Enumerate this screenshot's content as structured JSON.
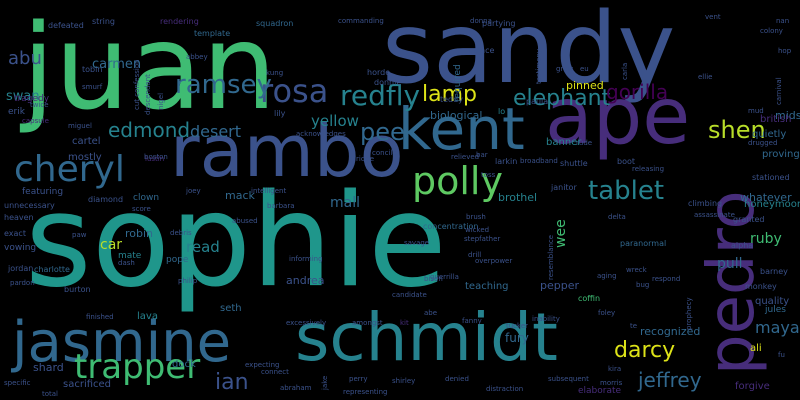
{
  "palette": {
    "background": "#000000",
    "green": "#3fbc73",
    "lime": "#b8de29",
    "yellow": "#dde318",
    "teal": "#1f968b",
    "cyan": "#26828e",
    "blue": "#31688e",
    "indigo": "#3b528b",
    "violet": "#472d7b",
    "purple": "#440154",
    "lightgreen": "#5ec962",
    "mint": "#20a386"
  },
  "words": [
    {
      "text": "sophie",
      "color": "#1f968b"
    },
    {
      "text": "juan",
      "color": "#3fbc73"
    },
    {
      "text": "sandy",
      "color": "#3b528b"
    },
    {
      "text": "ape",
      "color": "#472d7b"
    },
    {
      "text": "rambo",
      "color": "#3b528b"
    },
    {
      "text": "schmidt",
      "color": "#26828e"
    },
    {
      "text": "jasmine",
      "color": "#31688e"
    },
    {
      "text": "pedro",
      "color": "#472d7b"
    },
    {
      "text": "kent",
      "color": "#31688e"
    },
    {
      "text": "trapper",
      "color": "#3fbc73"
    },
    {
      "text": "cheryl",
      "color": "#31688e"
    },
    {
      "text": "polly",
      "color": "#5ec962"
    },
    {
      "text": "rosa",
      "color": "#3b528b"
    },
    {
      "text": "redfly",
      "color": "#26828e"
    },
    {
      "text": "ramsey",
      "color": "#31688e"
    },
    {
      "text": "lamp",
      "color": "#dde318"
    },
    {
      "text": "elephant",
      "color": "#26828e"
    },
    {
      "text": "gorilla",
      "color": "#440154"
    },
    {
      "text": "shen",
      "color": "#b8de29"
    },
    {
      "text": "yellow",
      "color": "#26828e"
    },
    {
      "text": "pee",
      "color": "#31688e"
    },
    {
      "text": "tablet",
      "color": "#26828e"
    },
    {
      "text": "edmond",
      "color": "#26828e"
    },
    {
      "text": "desert",
      "color": "#31688e"
    },
    {
      "text": "darcy",
      "color": "#dde318"
    },
    {
      "text": "jeffrey",
      "color": "#31688e"
    },
    {
      "text": "ian",
      "color": "#3b528b"
    },
    {
      "text": "maya",
      "color": "#31688e"
    },
    {
      "text": "abu",
      "color": "#3b528b"
    },
    {
      "text": "carmen",
      "color": "#31688e"
    },
    {
      "text": "swan",
      "color": "#26828e"
    },
    {
      "text": "mall",
      "color": "#31688e"
    },
    {
      "text": "read",
      "color": "#26828e"
    },
    {
      "text": "car",
      "color": "#b8de29"
    },
    {
      "text": "wee",
      "color": "#3fbc73"
    },
    {
      "text": "pull",
      "color": "#31688e"
    },
    {
      "text": "ruby",
      "color": "#3fbc73"
    },
    {
      "text": "mack",
      "color": "#31688e"
    },
    {
      "text": "whatever",
      "color": "#31688e"
    },
    {
      "text": "brothel",
      "color": "#26828e"
    },
    {
      "text": "biological",
      "color": "#31688e"
    },
    {
      "text": "banner",
      "color": "#26828e"
    },
    {
      "text": "quietly",
      "color": "#31688e"
    },
    {
      "text": "midst",
      "color": "#31688e"
    },
    {
      "text": "proving",
      "color": "#31688e"
    },
    {
      "text": "british",
      "color": "#472d7b"
    },
    {
      "text": "honeymoon",
      "color": "#26828e"
    },
    {
      "text": "pinned",
      "color": "#dde318"
    },
    {
      "text": "fury",
      "color": "#31688e"
    },
    {
      "text": "recognized",
      "color": "#31688e"
    },
    {
      "text": "andrea",
      "color": "#3b528b"
    },
    {
      "text": "pepper",
      "color": "#3b528b"
    },
    {
      "text": "teaching",
      "color": "#31688e"
    },
    {
      "text": "robin",
      "color": "#31688e"
    },
    {
      "text": "mate",
      "color": "#26828e"
    },
    {
      "text": "pope",
      "color": "#31688e"
    },
    {
      "text": "lava",
      "color": "#26828e"
    },
    {
      "text": "seth",
      "color": "#31688e"
    },
    {
      "text": "dock",
      "color": "#31688e"
    },
    {
      "text": "shard",
      "color": "#3b528b"
    },
    {
      "text": "sacrificed",
      "color": "#3b528b"
    },
    {
      "text": "quality",
      "color": "#3b528b"
    },
    {
      "text": "jules",
      "color": "#31688e"
    },
    {
      "text": "ali",
      "color": "#dde318"
    },
    {
      "text": "forgive",
      "color": "#472d7b"
    },
    {
      "text": "mostly",
      "color": "#3b528b"
    },
    {
      "text": "cartel",
      "color": "#3b528b"
    },
    {
      "text": "tragedy",
      "color": "#472d7b"
    },
    {
      "text": "erik",
      "color": "#3b528b"
    },
    {
      "text": "featuring",
      "color": "#3b528b"
    },
    {
      "text": "clown",
      "color": "#31688e"
    },
    {
      "text": "diamond",
      "color": "#3b528b"
    },
    {
      "text": "unnecessary",
      "color": "#3b528b"
    },
    {
      "text": "heaven",
      "color": "#3b528b"
    },
    {
      "text": "exact",
      "color": "#3b528b"
    },
    {
      "text": "vowing",
      "color": "#3b528b"
    },
    {
      "text": "jordan",
      "color": "#3b528b"
    },
    {
      "text": "charlotte",
      "color": "#31688e"
    },
    {
      "text": "burton",
      "color": "#3b528b"
    },
    {
      "text": "defeated",
      "color": "#3b528b"
    },
    {
      "text": "string",
      "color": "#3b528b"
    },
    {
      "text": "tobin",
      "color": "#3b528b"
    },
    {
      "text": "abbey",
      "color": "#3b528b"
    },
    {
      "text": "kung",
      "color": "#3b528b"
    },
    {
      "text": "lily",
      "color": "#3b528b"
    },
    {
      "text": "squadron",
      "color": "#31688e"
    },
    {
      "text": "rendering",
      "color": "#472d7b"
    },
    {
      "text": "template",
      "color": "#31688e"
    },
    {
      "text": "commanding",
      "color": "#3b528b"
    },
    {
      "text": "horde",
      "color": "#3b528b"
    },
    {
      "text": "donnie",
      "color": "#3b528b"
    },
    {
      "text": "teddy",
      "color": "#3b528b"
    },
    {
      "text": "palace",
      "color": "#3b528b"
    },
    {
      "text": "partying",
      "color": "#3b528b"
    },
    {
      "text": "donna",
      "color": "#3b528b"
    },
    {
      "text": "lo",
      "color": "#26828e"
    },
    {
      "text": "paula",
      "color": "#3b528b"
    },
    {
      "text": "larkin",
      "color": "#3b528b"
    },
    {
      "text": "relieved",
      "color": "#3b528b"
    },
    {
      "text": "concentration",
      "color": "#31688e"
    },
    {
      "text": "required",
      "color": "#31688e"
    },
    {
      "text": "shuttle",
      "color": "#3b528b"
    },
    {
      "text": "boot",
      "color": "#3b528b"
    },
    {
      "text": "releasing",
      "color": "#3b528b"
    },
    {
      "text": "stationed",
      "color": "#3b528b"
    },
    {
      "text": "drugged",
      "color": "#3b528b"
    },
    {
      "text": "janitor",
      "color": "#3b528b"
    },
    {
      "text": "climbing",
      "color": "#3b528b"
    },
    {
      "text": "granted",
      "color": "#3b528b"
    },
    {
      "text": "alpha",
      "color": "#3b528b"
    },
    {
      "text": "barney",
      "color": "#3b528b"
    },
    {
      "text": "monkey",
      "color": "#3b528b"
    },
    {
      "text": "paranormal",
      "color": "#31688e"
    },
    {
      "text": "wreck",
      "color": "#3b528b"
    },
    {
      "text": "respond",
      "color": "#3b528b"
    },
    {
      "text": "bug",
      "color": "#3b528b"
    },
    {
      "text": "aging",
      "color": "#3b528b"
    },
    {
      "text": "coffin",
      "color": "#3fbc73"
    },
    {
      "text": "foley",
      "color": "#3b528b"
    },
    {
      "text": "abe",
      "color": "#3b528b"
    },
    {
      "text": "fanny",
      "color": "#3b528b"
    },
    {
      "text": "tucker",
      "color": "#3b528b"
    },
    {
      "text": "inability",
      "color": "#3b528b"
    },
    {
      "text": "kit",
      "color": "#472d7b"
    },
    {
      "text": "guerrilla",
      "color": "#3b528b"
    },
    {
      "text": "drill",
      "color": "#3b528b"
    },
    {
      "text": "bison",
      "color": "#3b528b"
    },
    {
      "text": "savage",
      "color": "#3b528b"
    },
    {
      "text": "stepfather",
      "color": "#3b528b"
    },
    {
      "text": "wicked",
      "color": "#3b528b"
    },
    {
      "text": "overpower",
      "color": "#3b528b"
    },
    {
      "text": "informing",
      "color": "#3b528b"
    },
    {
      "text": "excessively",
      "color": "#3b528b"
    },
    {
      "text": "amongst",
      "color": "#3b528b"
    },
    {
      "text": "philip",
      "color": "#3b528b"
    },
    {
      "text": "debris",
      "color": "#3b528b"
    },
    {
      "text": "abused",
      "color": "#3b528b"
    },
    {
      "text": "barbara",
      "color": "#3b528b"
    },
    {
      "text": "intelligent",
      "color": "#3b528b"
    },
    {
      "text": "joey",
      "color": "#3b528b"
    },
    {
      "text": "score",
      "color": "#3b528b"
    },
    {
      "text": "paw",
      "color": "#3b528b"
    },
    {
      "text": "finished",
      "color": "#3b528b"
    },
    {
      "text": "expecting",
      "color": "#3b528b"
    },
    {
      "text": "connect",
      "color": "#3b528b"
    },
    {
      "text": "abraham",
      "color": "#3b528b"
    },
    {
      "text": "perry",
      "color": "#3b528b"
    },
    {
      "text": "shirley",
      "color": "#3b528b"
    },
    {
      "text": "representing",
      "color": "#3b528b"
    },
    {
      "text": "denied",
      "color": "#3b528b"
    },
    {
      "text": "distraction",
      "color": "#3b528b"
    },
    {
      "text": "subsequent",
      "color": "#3b528b"
    },
    {
      "text": "morris",
      "color": "#3b528b"
    },
    {
      "text": "kira",
      "color": "#3b528b"
    },
    {
      "text": "elaborate",
      "color": "#472d7b"
    },
    {
      "text": "specific",
      "color": "#3b528b"
    },
    {
      "text": "total",
      "color": "#3b528b"
    },
    {
      "text": "te",
      "color": "#3b528b"
    },
    {
      "text": "fu",
      "color": "#3b528b"
    },
    {
      "text": "vent",
      "color": "#3b528b"
    },
    {
      "text": "ellie",
      "color": "#3b528b"
    },
    {
      "text": "carla",
      "color": "#3b528b"
    },
    {
      "text": "grew",
      "color": "#3b528b"
    },
    {
      "text": "ridge",
      "color": "#3b528b"
    },
    {
      "text": "acknowledges",
      "color": "#3b528b"
    },
    {
      "text": "smurf",
      "color": "#3b528b"
    },
    {
      "text": "capsule",
      "color": "#472d7b"
    },
    {
      "text": "twice",
      "color": "#3b528b"
    },
    {
      "text": "miguel",
      "color": "#3b528b"
    },
    {
      "text": "lustin",
      "color": "#472d7b"
    },
    {
      "text": "nigel",
      "color": "#3b528b"
    },
    {
      "text": "testimony",
      "color": "#3b528b"
    },
    {
      "text": "descendant",
      "color": "#3b528b"
    },
    {
      "text": "cut confession",
      "color": "#3b528b"
    },
    {
      "text": "prophecy",
      "color": "#3b528b"
    },
    {
      "text": "carnival",
      "color": "#3b528b"
    },
    {
      "text": "colony",
      "color": "#3b528b"
    },
    {
      "text": "nan",
      "color": "#3b528b"
    },
    {
      "text": "eu",
      "color": "#3b528b"
    },
    {
      "text": "mud",
      "color": "#3b528b"
    },
    {
      "text": "delta",
      "color": "#3b528b"
    },
    {
      "text": "pardon",
      "color": "#3b528b"
    },
    {
      "text": "assassinate",
      "color": "#3b528b"
    },
    {
      "text": "resemblance",
      "color": "#3b528b"
    },
    {
      "text": "candidate",
      "color": "#3b528b"
    },
    {
      "text": "jake",
      "color": "#3b528b"
    },
    {
      "text": "brush",
      "color": "#3b528b"
    },
    {
      "text": "rude",
      "color": "#3b528b"
    },
    {
      "text": "bar",
      "color": "#3b528b"
    },
    {
      "text": "toss",
      "color": "#3b528b"
    },
    {
      "text": "dash",
      "color": "#3b528b"
    },
    {
      "text": "concile",
      "color": "#3b528b"
    },
    {
      "text": "broadband",
      "color": "#3b528b"
    },
    {
      "text": "boston",
      "color": "#3b528b"
    },
    {
      "text": "hop",
      "color": "#3b528b"
    }
  ]
}
